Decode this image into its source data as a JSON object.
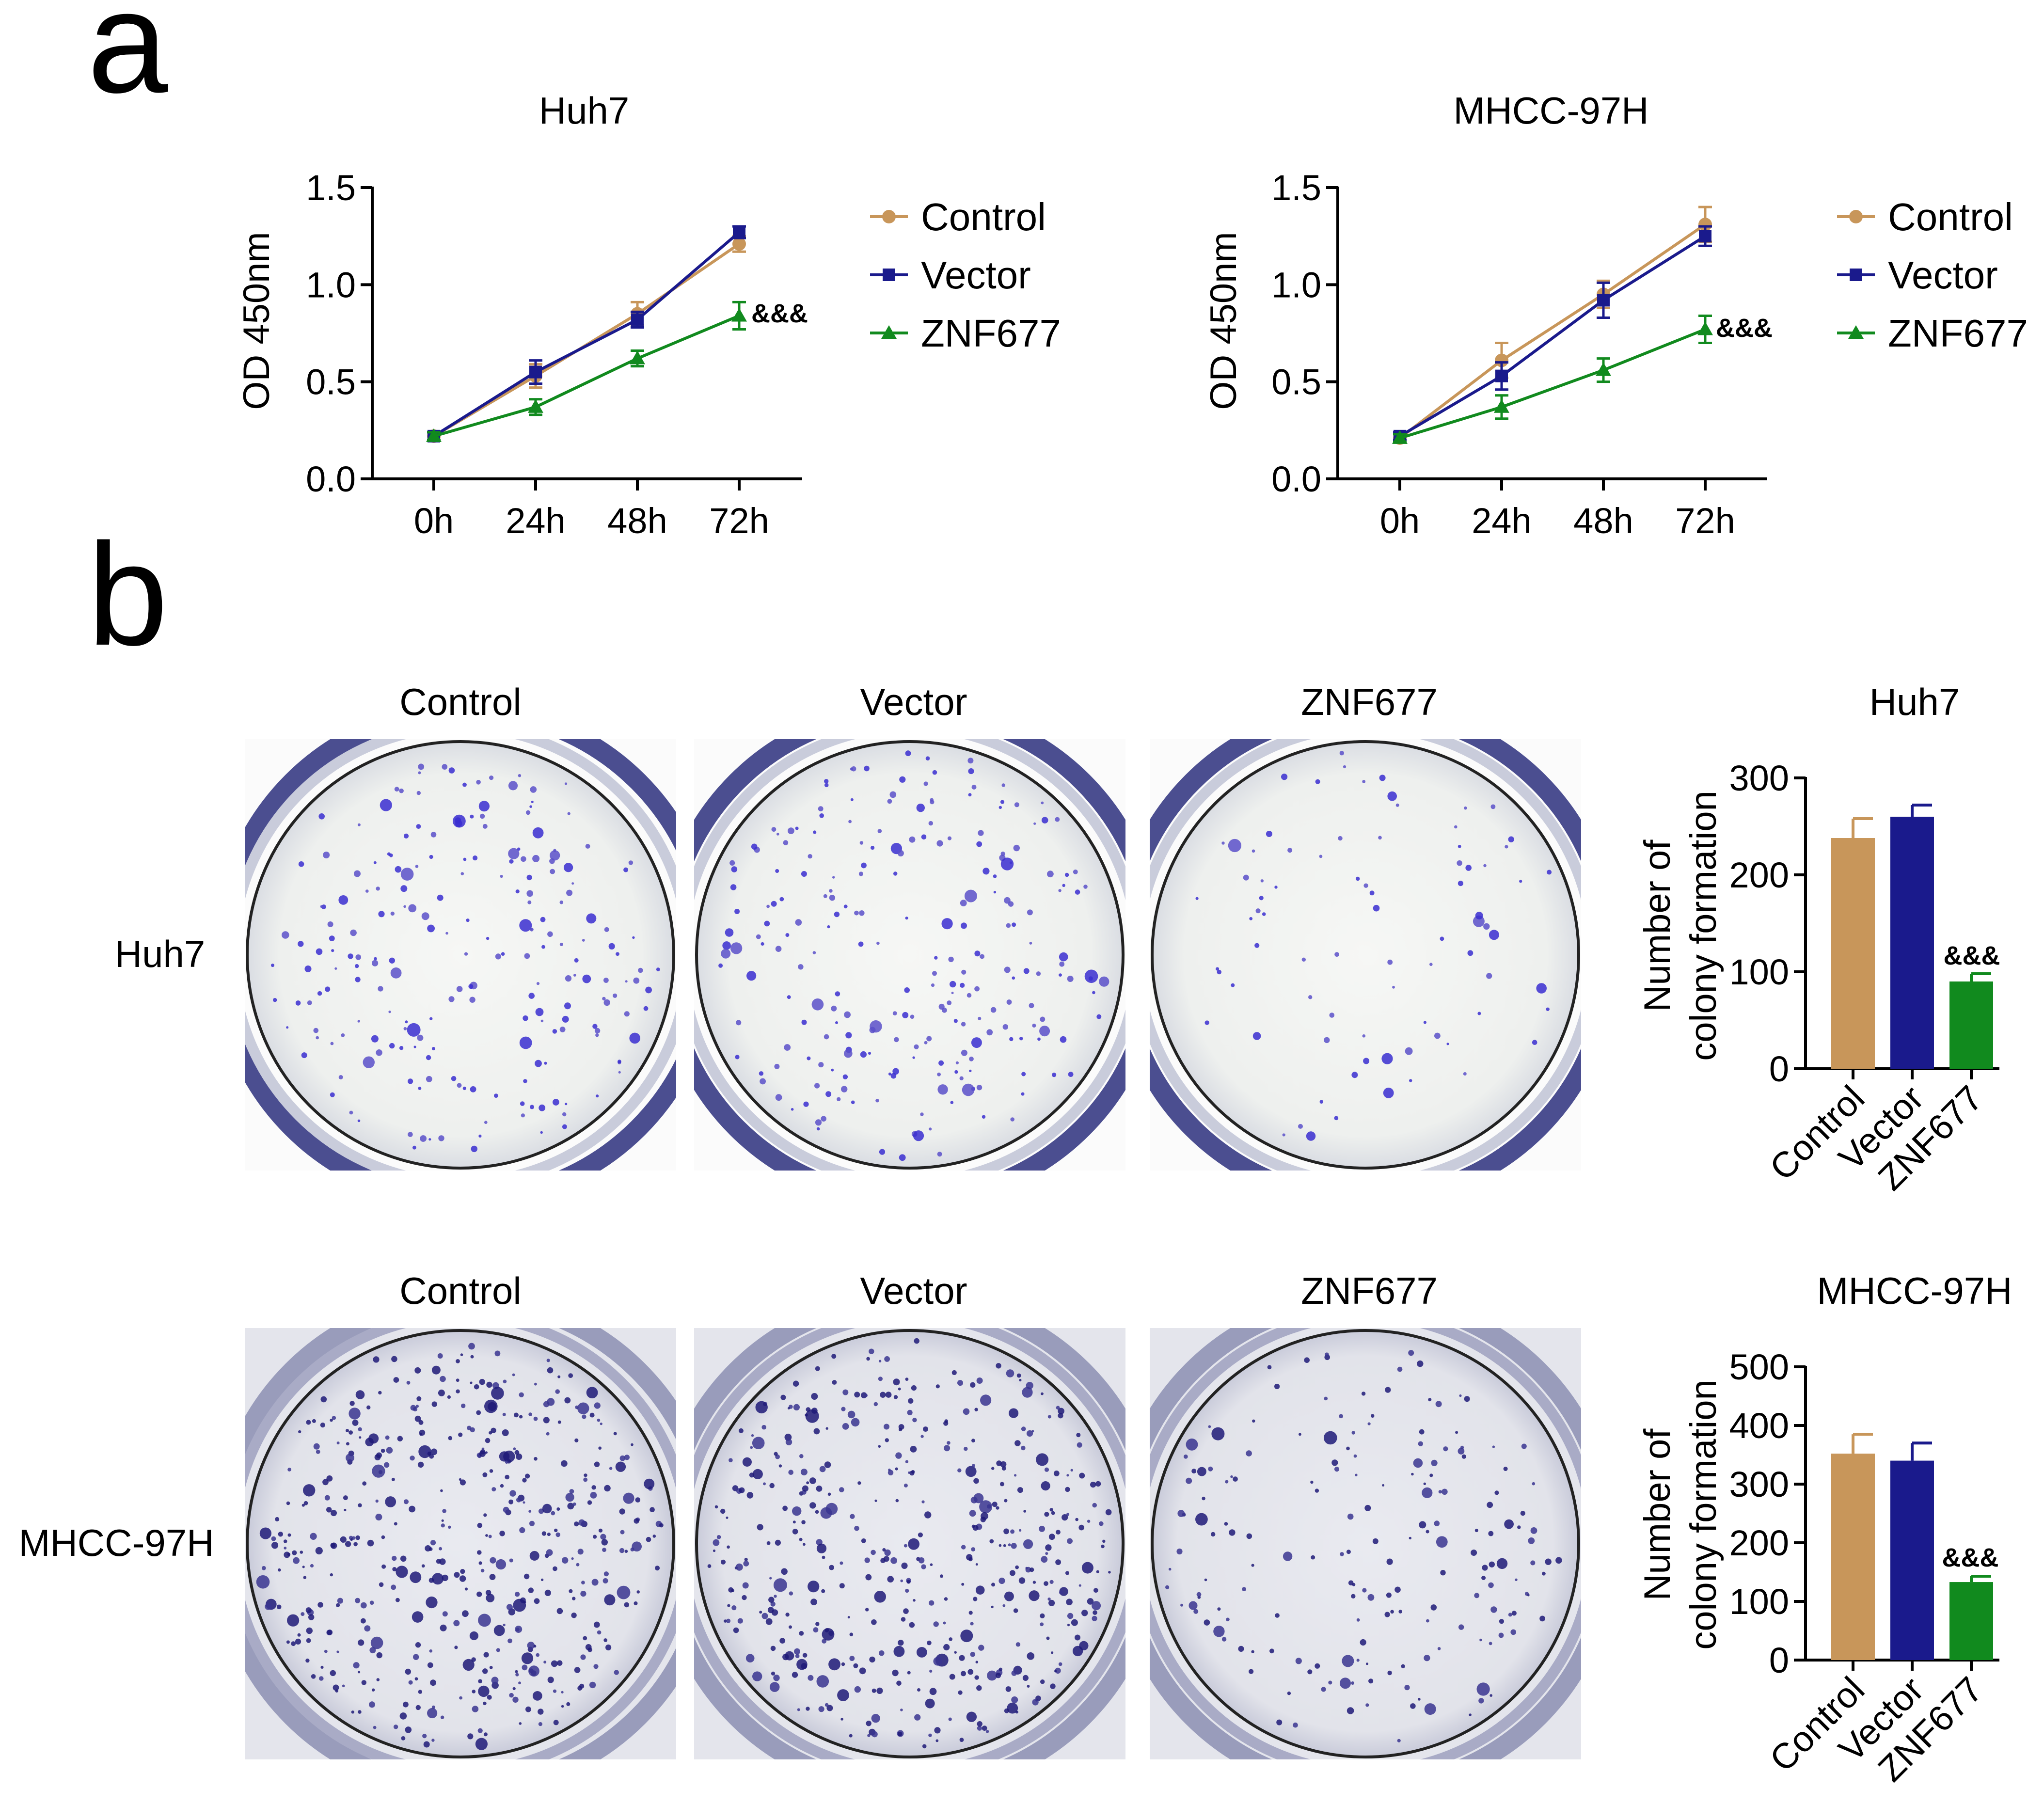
{
  "panels": {
    "a": "a",
    "b": "b"
  },
  "colors": {
    "control": "#C8965A",
    "vector": "#1A1A8C",
    "znf677": "#118A1E",
    "dish_bg": "#F3F4F2",
    "colony": "#3A2ED0",
    "colony_dark": "#1F1A78",
    "rim": "#2A2E7A"
  },
  "chart_data": [
    {
      "type": "line",
      "title": "Huh7",
      "ylabel": "OD 450nm",
      "xlabel": "",
      "categories": [
        "0h",
        "24h",
        "48h",
        "72h"
      ],
      "ylim": [
        0,
        1.5
      ],
      "yticks": [
        "0.0",
        "0.5",
        "1.0",
        "1.5"
      ],
      "legend": "right",
      "series": [
        {
          "name": "Control",
          "values": [
            0.22,
            0.53,
            0.85,
            1.21
          ],
          "err": [
            0.02,
            0.06,
            0.06,
            0.04
          ],
          "marker": "circle",
          "color_key": "control"
        },
        {
          "name": "Vector",
          "values": [
            0.22,
            0.55,
            0.82,
            1.27
          ],
          "err": [
            0.02,
            0.06,
            0.04,
            0.03
          ],
          "marker": "square",
          "color_key": "vector"
        },
        {
          "name": "ZNF677",
          "values": [
            0.22,
            0.37,
            0.62,
            0.84
          ],
          "err": [
            0.02,
            0.04,
            0.04,
            0.07
          ],
          "marker": "triangle",
          "color_key": "znf677"
        }
      ],
      "annotation": "&&&"
    },
    {
      "type": "line",
      "title": "MHCC-97H",
      "ylabel": "OD 450nm",
      "xlabel": "",
      "categories": [
        "0h",
        "24h",
        "48h",
        "72h"
      ],
      "ylim": [
        0,
        1.5
      ],
      "yticks": [
        "0.0",
        "0.5",
        "1.0",
        "1.5"
      ],
      "legend": "right",
      "series": [
        {
          "name": "Control",
          "values": [
            0.21,
            0.61,
            0.95,
            1.31
          ],
          "err": [
            0.02,
            0.09,
            0.07,
            0.09
          ],
          "marker": "circle",
          "color_key": "control"
        },
        {
          "name": "Vector",
          "values": [
            0.22,
            0.53,
            0.92,
            1.25
          ],
          "err": [
            0.02,
            0.07,
            0.09,
            0.05
          ],
          "marker": "square",
          "color_key": "vector"
        },
        {
          "name": "ZNF677",
          "values": [
            0.21,
            0.37,
            0.56,
            0.77
          ],
          "err": [
            0.02,
            0.06,
            0.06,
            0.07
          ],
          "marker": "triangle",
          "color_key": "znf677"
        }
      ],
      "annotation": "&&&"
    },
    {
      "type": "bar",
      "title": "Huh7",
      "ylabel": "Number of colony formation",
      "ylabel_lines": [
        "Number of",
        "colony formation"
      ],
      "categories": [
        "Control",
        "Vector",
        "ZNF677"
      ],
      "values": [
        238,
        260,
        90
      ],
      "err": [
        20,
        12,
        8
      ],
      "color_keys": [
        "control",
        "vector",
        "znf677"
      ],
      "ylim": [
        0,
        300
      ],
      "yticks": [
        "0",
        "100",
        "200",
        "300"
      ],
      "annotation": "&&&"
    },
    {
      "type": "bar",
      "title": "MHCC-97H",
      "ylabel": "Number of colony formation",
      "ylabel_lines": [
        "Number of",
        "colony formation"
      ],
      "categories": [
        "Control",
        "Vector",
        "ZNF677"
      ],
      "values": [
        352,
        340,
        133
      ],
      "err": [
        33,
        30,
        10
      ],
      "color_keys": [
        "control",
        "vector",
        "znf677"
      ],
      "ylim": [
        0,
        500
      ],
      "yticks": [
        "0",
        "100",
        "200",
        "300",
        "400",
        "500"
      ],
      "annotation": "&&&"
    }
  ],
  "colony_plates": {
    "row_labels": [
      "Huh7",
      "MHCC-97H"
    ],
    "rows": [
      {
        "label": "Huh7",
        "plates": [
          {
            "label": "Control",
            "colonies": 238
          },
          {
            "label": "Vector",
            "colonies": 260
          },
          {
            "label": "ZNF677",
            "colonies": 90
          }
        ]
      },
      {
        "label": "MHCC-97H",
        "plates": [
          {
            "label": "Control",
            "colonies": 352
          },
          {
            "label": "Vector",
            "colonies": 340
          },
          {
            "label": "ZNF677",
            "colonies": 133
          }
        ]
      }
    ]
  }
}
